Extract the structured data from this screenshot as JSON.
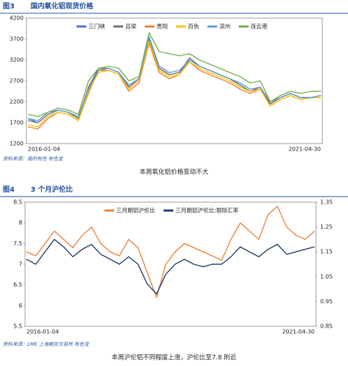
{
  "chart_data": [
    {
      "type": "line",
      "figure_label": "图3",
      "title": "国内氧化铝现货价格",
      "source": "资料来源：我的有色   有色宝",
      "caption": "本周氧化铝价格变动不大",
      "categories": [
        "2016-01-04",
        null,
        null,
        null,
        null,
        null,
        null,
        null,
        null,
        null,
        null,
        null,
        null,
        null,
        null,
        null,
        null,
        null,
        null,
        null,
        null,
        null,
        null,
        null,
        null,
        null,
        null,
        null,
        null,
        "2021-04-30"
      ],
      "ylim": [
        1200,
        4200
      ],
      "yticks": [
        1200,
        1700,
        2200,
        2700,
        3200,
        3700,
        4200
      ],
      "grid": false,
      "series": [
        {
          "name": "三门峡",
          "color": "#4472c4",
          "values": [
            1800,
            1700,
            1900,
            2000,
            1950,
            1800,
            2500,
            2950,
            3000,
            2900,
            2550,
            2750,
            3750,
            3000,
            2850,
            2900,
            3200,
            3050,
            2950,
            2850,
            2750,
            2600,
            2450,
            2550,
            2150,
            2300,
            2400,
            2300,
            2300,
            2350
          ]
        },
        {
          "name": "吕梁",
          "color": "#6e6e6e",
          "values": [
            1750,
            1700,
            1900,
            2000,
            1950,
            1800,
            2550,
            3000,
            3000,
            2900,
            2550,
            2750,
            3700,
            3000,
            2850,
            2900,
            3250,
            3050,
            2950,
            2850,
            2750,
            2600,
            2450,
            2550,
            2150,
            2300,
            2400,
            2300,
            2300,
            2350
          ]
        },
        {
          "name": "贵阳",
          "color": "#ed7d31",
          "values": [
            1600,
            1550,
            1800,
            1950,
            1900,
            1750,
            2400,
            2950,
            2950,
            2850,
            2450,
            2650,
            3600,
            2900,
            2750,
            2850,
            3150,
            2950,
            2850,
            2750,
            2650,
            2500,
            2400,
            2500,
            2100,
            2250,
            2350,
            2250,
            2300,
            2300
          ]
        },
        {
          "name": "百色",
          "color": "#ffc000",
          "values": [
            1650,
            1600,
            1850,
            1950,
            1900,
            1750,
            2450,
            2900,
            2950,
            2850,
            2500,
            2700,
            3650,
            2950,
            2800,
            2850,
            3150,
            3000,
            2900,
            2800,
            2700,
            2550,
            2450,
            2500,
            2100,
            2250,
            2350,
            2250,
            2300,
            2300
          ]
        },
        {
          "name": "滨州",
          "color": "#5b9bd5",
          "values": [
            1800,
            1750,
            1950,
            2000,
            1950,
            1850,
            2500,
            2950,
            3000,
            2900,
            2600,
            2750,
            3750,
            3050,
            2900,
            2950,
            3200,
            3050,
            2950,
            2850,
            2750,
            2650,
            2500,
            2550,
            2200,
            2300,
            2400,
            2300,
            2300,
            2350
          ]
        },
        {
          "name": "连云港",
          "color": "#70ad47",
          "values": [
            1900,
            1850,
            1950,
            2050,
            2000,
            1900,
            2700,
            3000,
            3050,
            3000,
            2700,
            2800,
            3850,
            3400,
            3350,
            3300,
            3350,
            3200,
            3100,
            3000,
            2900,
            2800,
            2650,
            2700,
            2200,
            2350,
            2450,
            2400,
            2450,
            2450
          ]
        }
      ]
    },
    {
      "type": "line",
      "figure_label": "图4",
      "title": "3 个月沪伦比",
      "source": "资料来源：LME   上海期货交易所   有色宝",
      "caption": "本周沪伦铝不同程度上涨，沪伦比至7.8 附近",
      "categories": [
        "2016-01-04",
        null,
        null,
        null,
        null,
        null,
        null,
        null,
        null,
        null,
        null,
        null,
        null,
        null,
        null,
        null,
        null,
        null,
        null,
        null,
        null,
        null,
        null,
        null,
        null,
        null,
        null,
        null,
        null,
        null,
        null,
        "2021-04-30"
      ],
      "ylim": [
        5.5,
        8.5
      ],
      "yticks": [
        5.5,
        6,
        6.5,
        7,
        7.5,
        8,
        8.5
      ],
      "y2lim": [
        0.85,
        1.35
      ],
      "y2ticks": [
        0.85,
        0.95,
        1.05,
        1.15,
        1.25,
        1.35
      ],
      "grid": false,
      "series": [
        {
          "name": "三月期铝沪伦比",
          "color": "#e8823a",
          "values": [
            7.3,
            7.2,
            7.5,
            7.8,
            7.6,
            7.4,
            7.7,
            7.9,
            7.5,
            7.3,
            7.2,
            7.6,
            7.4,
            6.8,
            6.2,
            7.0,
            7.3,
            7.5,
            7.4,
            7.3,
            7.2,
            7.1,
            7.6,
            8.0,
            7.8,
            7.6,
            8.2,
            8.4,
            7.9,
            7.7,
            7.6,
            7.8
          ]
        },
        {
          "name": "三月期铝沪伦比:剔除汇率",
          "color": "#1f3b63",
          "axis": "y2",
          "values": [
            1.12,
            1.1,
            1.15,
            1.2,
            1.17,
            1.13,
            1.16,
            1.18,
            1.14,
            1.12,
            1.1,
            1.13,
            1.1,
            1.02,
            0.98,
            1.06,
            1.1,
            1.12,
            1.1,
            1.09,
            1.1,
            1.1,
            1.13,
            1.17,
            1.15,
            1.13,
            1.16,
            1.18,
            1.14,
            1.15,
            1.16,
            1.17
          ]
        }
      ]
    }
  ]
}
